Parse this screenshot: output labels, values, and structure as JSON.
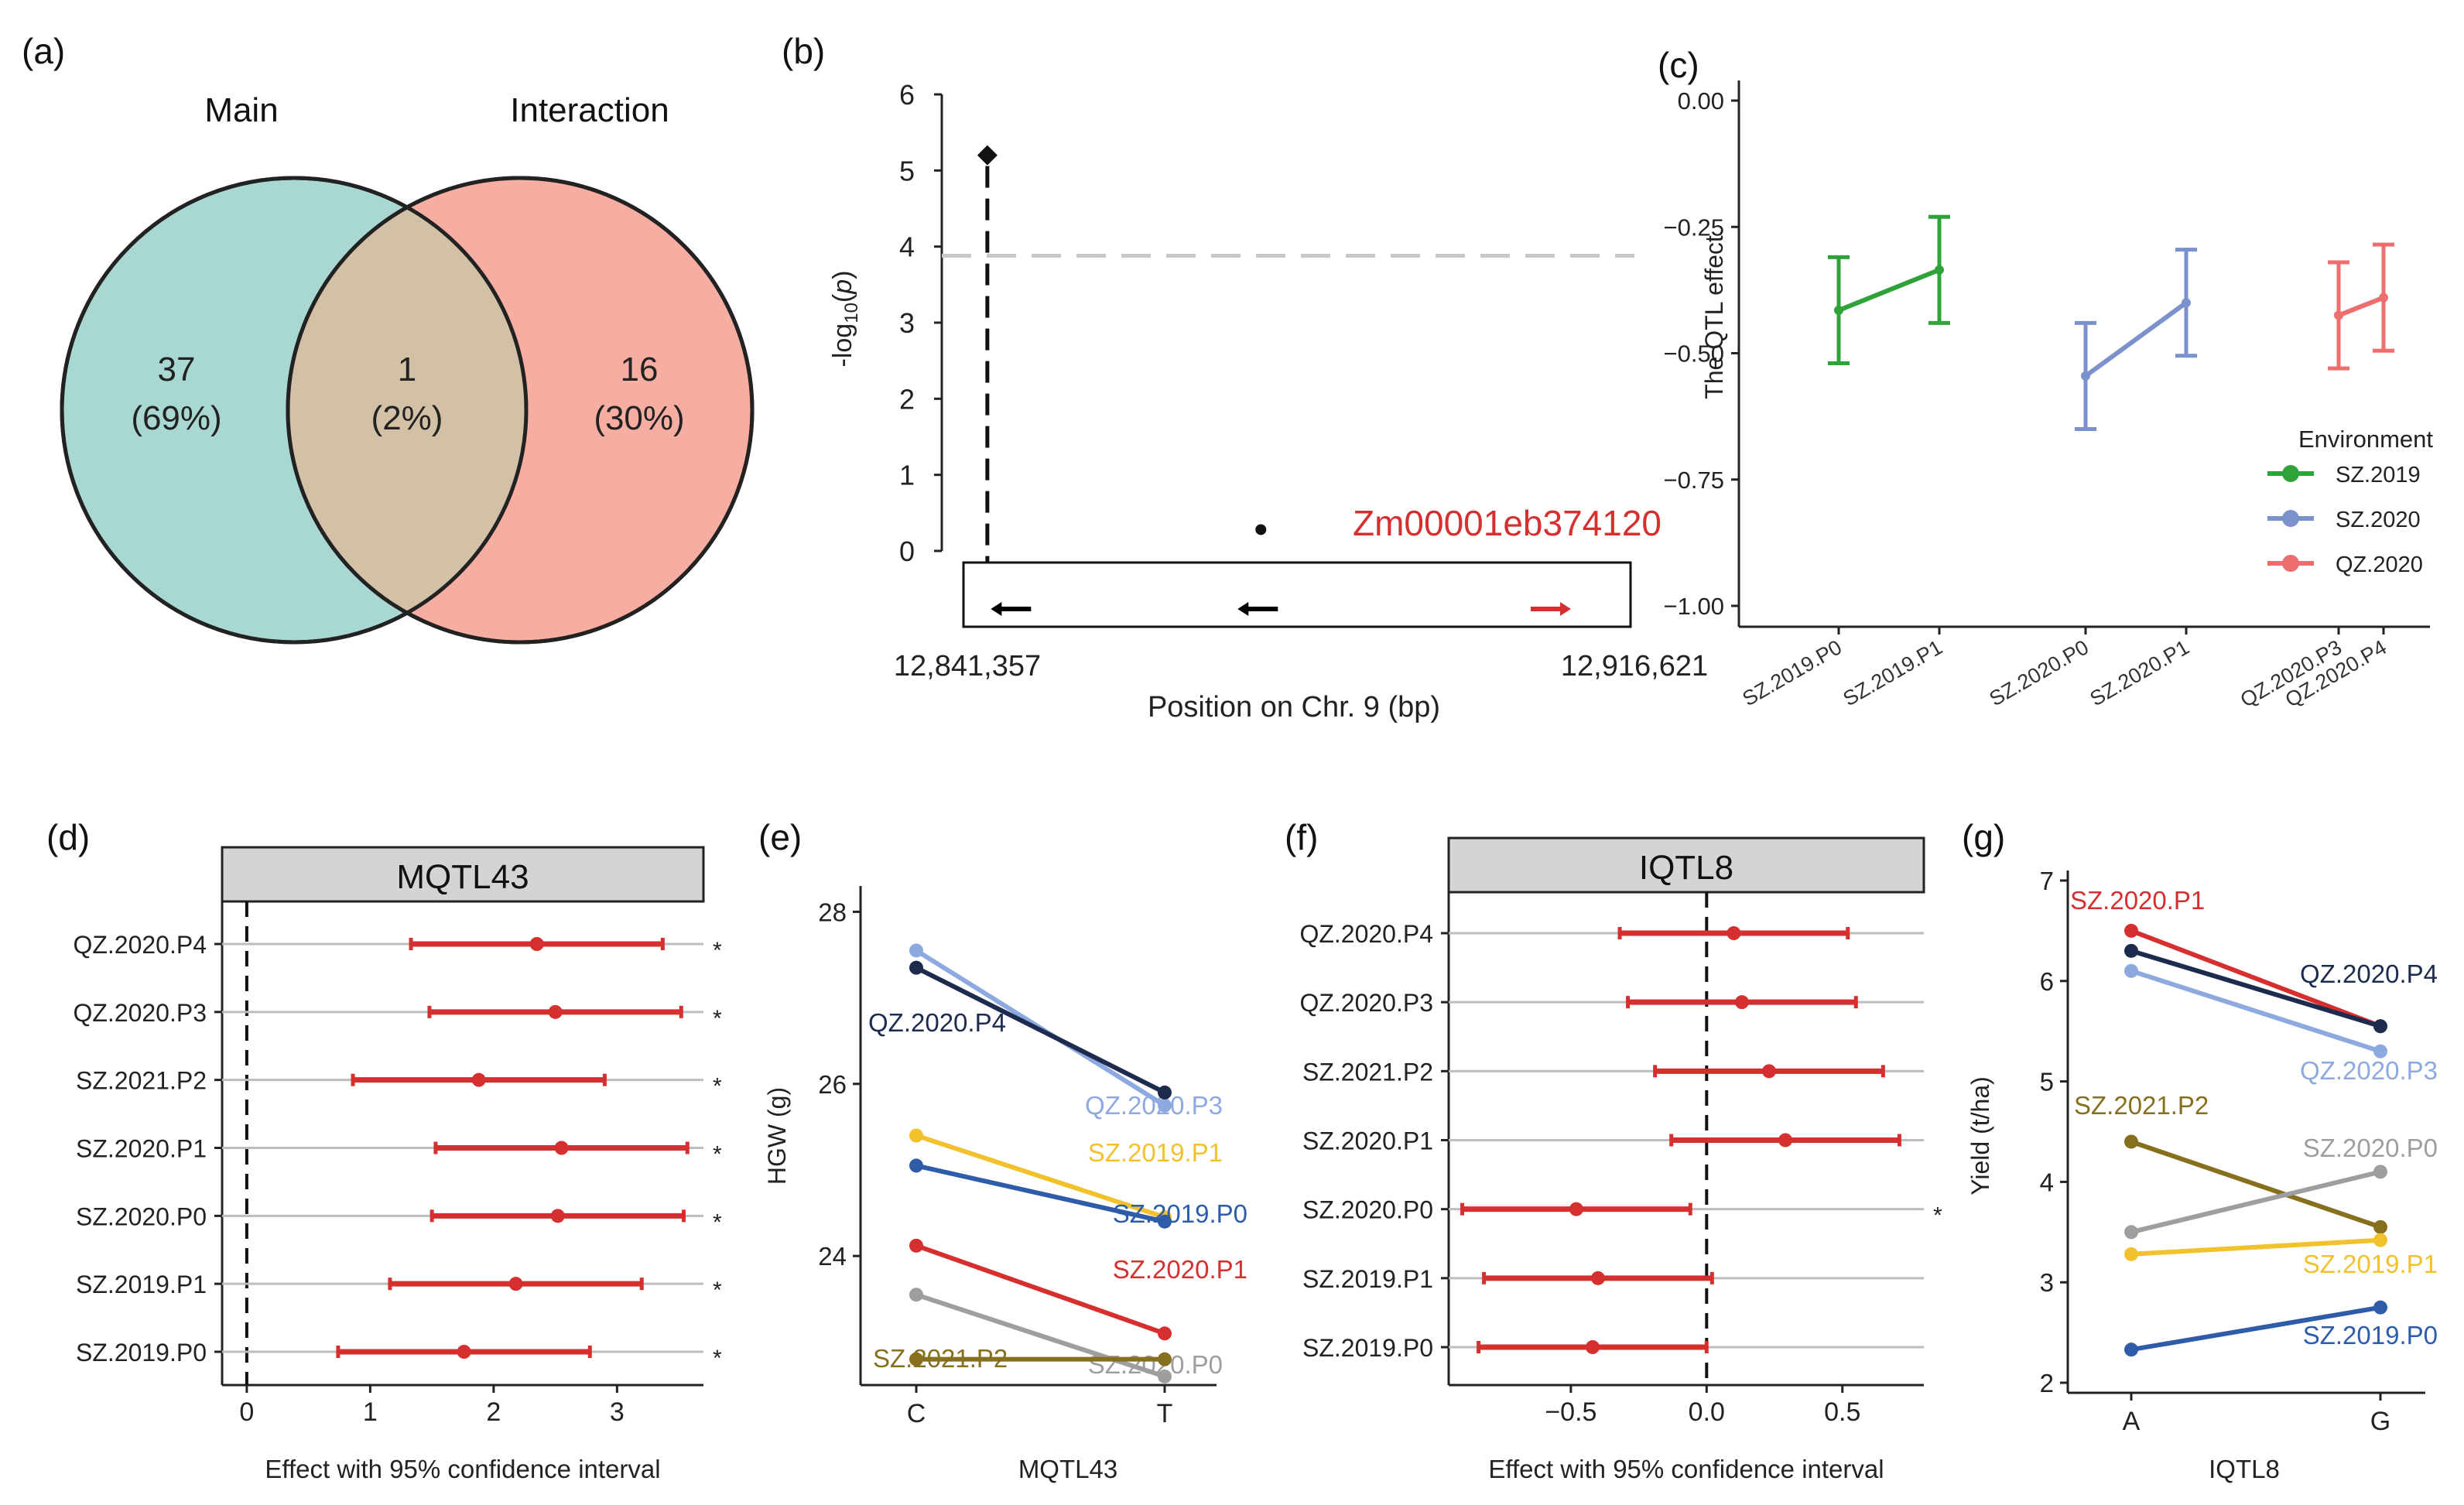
{
  "colors": {
    "teal": "#a9d8d2",
    "salmon": "#f5aea1",
    "overlap": "#d2c1a6",
    "red": "#d62f2f",
    "grey": "#bdbdbd",
    "green": "#2fa33a",
    "blue": "#7a91cc",
    "pink": "#ee6e6e",
    "navy": "#1d2b4f",
    "lightblue": "#8ea9e0",
    "yellow": "#f2c12e",
    "midblue": "#2e5ca8",
    "greyline": "#9e9e9e",
    "olive": "#86701e"
  },
  "panel_labels": {
    "a": "(a)",
    "b": "(b)",
    "c": "(c)",
    "d": "(d)",
    "e": "(e)",
    "f": "(f)",
    "g": "(g)"
  },
  "chart_data": [
    {
      "id": "a",
      "type": "venn",
      "sets": [
        {
          "name": "Main",
          "only": "37",
          "only_pct": "(69%)"
        },
        {
          "name": "Interaction",
          "only": "16",
          "only_pct": "(30%)"
        }
      ],
      "overlap": {
        "count": "1",
        "pct": "(2%)"
      }
    },
    {
      "id": "b",
      "type": "scatter",
      "xlabel": "Position on Chr. 9 (bp)",
      "ylabel": "-log10(p)",
      "ylim": [
        0,
        6
      ],
      "yticks": [
        0,
        1,
        2,
        3,
        4,
        5,
        6
      ],
      "xrange_labels": [
        "12,841,357",
        "12,916,621"
      ],
      "threshold": 3.88,
      "points": [
        {
          "x": 0.03,
          "y": 5.2,
          "shape": "diamond"
        },
        {
          "x": 0.44,
          "y": 0.28,
          "shape": "dot"
        }
      ],
      "genes": [
        {
          "x": 0.07,
          "direction": "left",
          "color": "#000000"
        },
        {
          "x": 0.44,
          "direction": "left",
          "color": "#000000"
        },
        {
          "x": 0.87,
          "direction": "right",
          "color": "#d62f2f"
        }
      ],
      "gene_label": "Zm00001eb374120"
    },
    {
      "id": "c",
      "type": "line",
      "ylabel": "The QTL effect",
      "ylim": [
        -1.0,
        0.0
      ],
      "yticks": [
        0.0,
        -0.25,
        -0.5,
        -0.75,
        -1.0
      ],
      "ytick_labels": [
        "0.00",
        "−0.25",
        "−0.50",
        "−0.75",
        "−1.00"
      ],
      "categories": [
        "SZ.2019.P0",
        "SZ.2019.P1",
        "SZ.2020.P0",
        "SZ.2020.P1",
        "QZ.2020.P3",
        "QZ.2020.P4"
      ],
      "legend_title": "Environment",
      "series": [
        {
          "name": "SZ.2019",
          "color": "#2fa33a",
          "points": [
            {
              "cat": 0,
              "y": -0.415,
              "lo": -0.52,
              "hi": -0.31
            },
            {
              "cat": 1,
              "y": -0.335,
              "lo": -0.44,
              "hi": -0.23
            }
          ]
        },
        {
          "name": "SZ.2020",
          "color": "#7a91cc",
          "points": [
            {
              "cat": 2,
              "y": -0.545,
              "lo": -0.65,
              "hi": -0.44
            },
            {
              "cat": 3,
              "y": -0.4,
              "lo": -0.505,
              "hi": -0.295
            }
          ]
        },
        {
          "name": "QZ.2020",
          "color": "#ee6e6e",
          "points": [
            {
              "cat": 4,
              "y": -0.425,
              "lo": -0.53,
              "hi": -0.32
            },
            {
              "cat": 5,
              "y": -0.39,
              "lo": -0.495,
              "hi": -0.285
            }
          ]
        }
      ]
    },
    {
      "id": "d",
      "type": "forest",
      "title": "MQTL43",
      "xlabel": "Effect with 95% confidence interval",
      "xlim": [
        -0.2,
        3.7
      ],
      "xticks": [
        0,
        1,
        2,
        3
      ],
      "rows": [
        {
          "label": "QZ.2020.P4",
          "est": 2.35,
          "lo": 1.33,
          "hi": 3.37,
          "sig": "*"
        },
        {
          "label": "QZ.2020.P3",
          "est": 2.5,
          "lo": 1.48,
          "hi": 3.52,
          "sig": "*"
        },
        {
          "label": "SZ.2021.P2",
          "est": 1.88,
          "lo": 0.86,
          "hi": 2.9,
          "sig": "*"
        },
        {
          "label": "SZ.2020.P1",
          "est": 2.55,
          "lo": 1.53,
          "hi": 3.57,
          "sig": "*"
        },
        {
          "label": "SZ.2020.P0",
          "est": 2.52,
          "lo": 1.5,
          "hi": 3.54,
          "sig": "*"
        },
        {
          "label": "SZ.2019.P1",
          "est": 2.18,
          "lo": 1.16,
          "hi": 3.2,
          "sig": "*"
        },
        {
          "label": "SZ.2019.P0",
          "est": 1.76,
          "lo": 0.74,
          "hi": 2.78,
          "sig": "*"
        }
      ]
    },
    {
      "id": "e",
      "type": "line",
      "ylabel": "HGW (g)",
      "xlabel": "MQTL43",
      "categories": [
        "C",
        "T"
      ],
      "ylim": [
        22.5,
        28.3
      ],
      "yticks": [
        24,
        26,
        28
      ],
      "series": [
        {
          "name": "QZ.2020.P3",
          "color": "#8ea9e0",
          "values": [
            27.55,
            25.75
          ]
        },
        {
          "name": "QZ.2020.P4",
          "color": "#1d2b4f",
          "values": [
            27.35,
            25.9
          ]
        },
        {
          "name": "SZ.2019.P1",
          "color": "#f2c12e",
          "values": [
            25.4,
            24.45
          ]
        },
        {
          "name": "SZ.2019.P0",
          "color": "#2e5ca8",
          "values": [
            25.05,
            24.4
          ]
        },
        {
          "name": "SZ.2020.P1",
          "color": "#d62f2f",
          "values": [
            24.12,
            23.1
          ]
        },
        {
          "name": "SZ.2020.P0",
          "color": "#9e9e9e",
          "values": [
            23.55,
            22.6
          ]
        },
        {
          "name": "SZ.2021.P2",
          "color": "#86701e",
          "values": [
            22.8,
            22.8
          ]
        }
      ]
    },
    {
      "id": "f",
      "type": "forest",
      "title": "IQTL8",
      "xlabel": "Effect with 95% confidence interval",
      "xlim": [
        -0.95,
        0.8
      ],
      "xticks": [
        -0.5,
        0.0,
        0.5
      ],
      "xtick_labels": [
        "−0.5",
        "0.0",
        "0.5"
      ],
      "rows": [
        {
          "label": "QZ.2020.P4",
          "est": 0.1,
          "lo": -0.32,
          "hi": 0.52,
          "sig": ""
        },
        {
          "label": "QZ.2020.P3",
          "est": 0.13,
          "lo": -0.29,
          "hi": 0.55,
          "sig": ""
        },
        {
          "label": "SZ.2021.P2",
          "est": 0.23,
          "lo": -0.19,
          "hi": 0.65,
          "sig": ""
        },
        {
          "label": "SZ.2020.P1",
          "est": 0.29,
          "lo": -0.13,
          "hi": 0.71,
          "sig": ""
        },
        {
          "label": "SZ.2020.P0",
          "est": -0.48,
          "lo": -0.9,
          "hi": -0.06,
          "sig": "*"
        },
        {
          "label": "SZ.2019.P1",
          "est": -0.4,
          "lo": -0.82,
          "hi": 0.02,
          "sig": ""
        },
        {
          "label": "SZ.2019.P0",
          "est": -0.42,
          "lo": -0.84,
          "hi": 0.0,
          "sig": ""
        }
      ]
    },
    {
      "id": "g",
      "type": "line",
      "ylabel": "Yield (t/ha)",
      "xlabel": "IQTL8",
      "categories": [
        "A",
        "G"
      ],
      "ylim": [
        1.9,
        7.1
      ],
      "yticks": [
        2,
        3,
        4,
        5,
        6,
        7
      ],
      "series": [
        {
          "name": "SZ.2020.P1",
          "color": "#d62f2f",
          "values": [
            6.5,
            5.55
          ]
        },
        {
          "name": "QZ.2020.P4",
          "color": "#1d2b4f",
          "values": [
            6.3,
            5.55
          ]
        },
        {
          "name": "QZ.2020.P3",
          "color": "#8ea9e0",
          "values": [
            6.1,
            5.3
          ]
        },
        {
          "name": "SZ.2021.P2",
          "color": "#86701e",
          "values": [
            4.4,
            3.55
          ]
        },
        {
          "name": "SZ.2020.P0",
          "color": "#9e9e9e",
          "values": [
            3.5,
            4.1
          ]
        },
        {
          "name": "SZ.2019.P1",
          "color": "#f2c12e",
          "values": [
            3.28,
            3.42
          ]
        },
        {
          "name": "SZ.2019.P0",
          "color": "#2e5ca8",
          "values": [
            2.33,
            2.75
          ]
        }
      ]
    }
  ]
}
